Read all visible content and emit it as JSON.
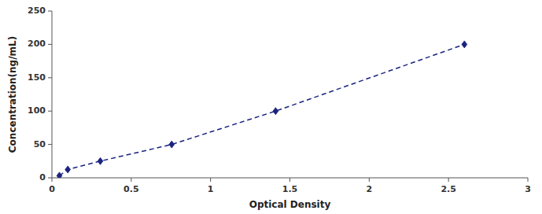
{
  "chart_data": {
    "type": "line",
    "xlabel": "Optical Density",
    "ylabel": "Concentration(ng/mL)",
    "x": [
      0.047,
      0.1,
      0.305,
      0.755,
      1.41,
      2.6
    ],
    "values": [
      3.125,
      12.5,
      25,
      50,
      100,
      200
    ],
    "color": "#1a237e",
    "marker": "diamond",
    "line_style": "dashed",
    "xlim": [
      0,
      3
    ],
    "ylim": [
      0,
      250
    ],
    "xticks": [
      0,
      0.5,
      1,
      1.5,
      2,
      2.5,
      3
    ],
    "yticks": [
      0,
      50,
      100,
      150,
      200,
      250
    ]
  }
}
